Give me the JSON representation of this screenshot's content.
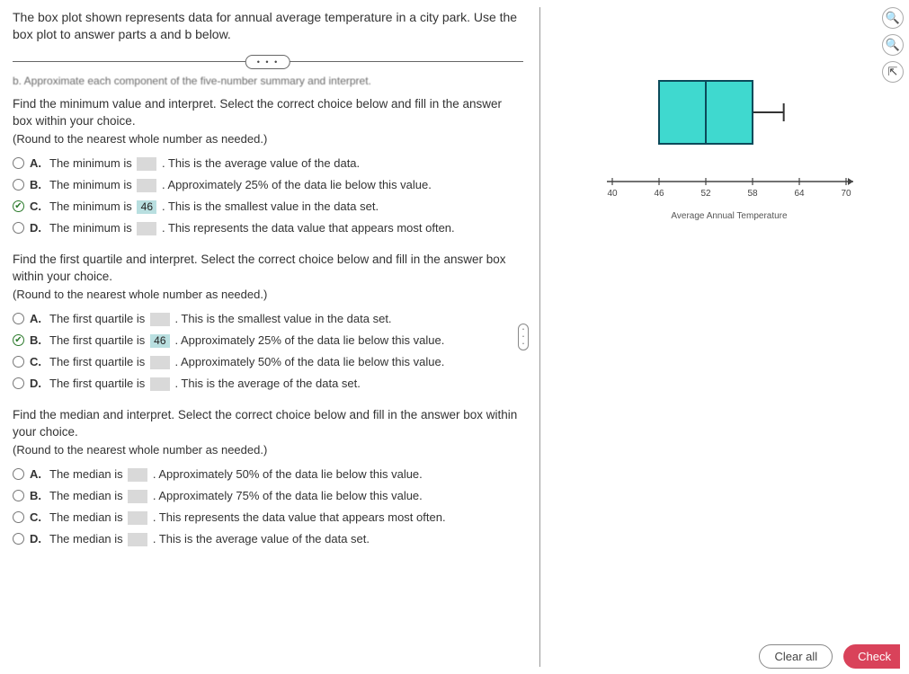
{
  "intro": "The box plot shown represents data for annual average temperature in a city park. Use the box plot to answer parts a and b below.",
  "pill": "• • •",
  "blurred_line": "b. Approximate each component of the five-number summary and interpret.",
  "questions": [
    {
      "prompt": "Find the minimum value and interpret. Select the correct choice below and fill in the answer box within your choice.",
      "sub": "(Round to the nearest whole number as needed.)",
      "choices": [
        {
          "letter": "A.",
          "pre": "The minimum is",
          "val": "",
          "post": ". This is the average value of the data.",
          "checked": false
        },
        {
          "letter": "B.",
          "pre": "The minimum is",
          "val": "",
          "post": ". Approximately 25% of the data lie below this value.",
          "checked": false
        },
        {
          "letter": "C.",
          "pre": "The minimum is",
          "val": "46",
          "post": ". This is the smallest value in the data set.",
          "checked": true
        },
        {
          "letter": "D.",
          "pre": "The minimum is",
          "val": "",
          "post": ". This represents the data value that appears most often.",
          "checked": false
        }
      ]
    },
    {
      "prompt": "Find the first quartile and interpret. Select the correct choice below and fill in the answer box within your choice.",
      "sub": "(Round to the nearest whole number as needed.)",
      "choices": [
        {
          "letter": "A.",
          "pre": "The first quartile is",
          "val": "",
          "post": ". This is the smallest value in the data set.",
          "checked": false
        },
        {
          "letter": "B.",
          "pre": "The first quartile is",
          "val": "46",
          "post": ". Approximately 25% of the data lie below this value.",
          "checked": true
        },
        {
          "letter": "C.",
          "pre": "The first quartile is",
          "val": "",
          "post": ". Approximately 50% of the data lie below this value.",
          "checked": false
        },
        {
          "letter": "D.",
          "pre": "The first quartile is",
          "val": "",
          "post": ". This is the average of the data set.",
          "checked": false
        }
      ]
    },
    {
      "prompt": "Find the median and interpret. Select the correct choice below and fill in the answer box within your choice.",
      "sub": "(Round to the nearest whole number as needed.)",
      "choices": [
        {
          "letter": "A.",
          "pre": "The median is",
          "val": "",
          "post": ". Approximately 50% of the data lie below this value.",
          "checked": false
        },
        {
          "letter": "B.",
          "pre": "The median is",
          "val": "",
          "post": ". Approximately 75% of the data lie below this value.",
          "checked": false
        },
        {
          "letter": "C.",
          "pre": "The median is",
          "val": "",
          "post": ". This represents the data value that appears most often.",
          "checked": false
        },
        {
          "letter": "D.",
          "pre": "The median is",
          "val": "",
          "post": ". This is the average value of the data set.",
          "checked": false
        }
      ]
    }
  ],
  "boxplot": {
    "min": 46,
    "q1": 46,
    "median": 52,
    "q3": 58,
    "max": 62,
    "box_fill": "#3fd9cf",
    "box_stroke": "#0b4a5a",
    "whisker_stroke": "#333333",
    "axis_min": 40,
    "axis_max": 70,
    "tick_step": 6,
    "ticks": [
      40,
      46,
      52,
      58,
      64,
      70
    ],
    "axis_label": "Average Annual Temperature",
    "axis_color": "#444444",
    "tick_fontsize": 10
  },
  "buttons": {
    "clear": "Clear all",
    "check": "Check"
  }
}
